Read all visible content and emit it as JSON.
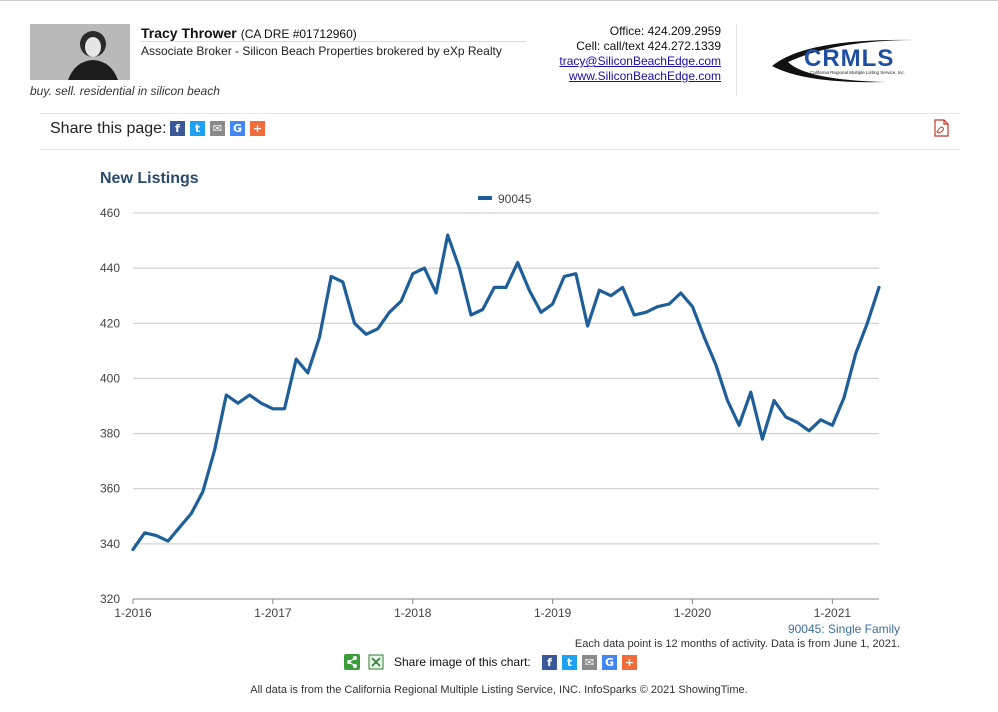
{
  "agent": {
    "name": "Tracy Thrower",
    "dre": "(CA DRE #01712960)",
    "title": "Associate Broker - Silicon Beach Properties brokered by eXp Realty",
    "tagline": "buy. sell. residential in silicon beach"
  },
  "contact": {
    "office": "Office: 424.209.2959",
    "cell": "Cell: call/text 424.272.1339",
    "email": "tracy@SiliconBeachEdge.com",
    "website": "www.SiliconBeachEdge.com"
  },
  "logo": {
    "text": "CRMLS",
    "subtext": "California Regional Multiple Listing Service, Inc."
  },
  "share_page": {
    "label": "Share this page:",
    "buttons": [
      {
        "icon": "facebook-icon",
        "glyph": "f",
        "color": "#3b5998"
      },
      {
        "icon": "twitter-icon",
        "glyph": "t",
        "color": "#1da1f2"
      },
      {
        "icon": "email-icon",
        "glyph": "✉",
        "color": "#8a8a8a"
      },
      {
        "icon": "google-icon",
        "glyph": "G",
        "color": "#4285f4"
      },
      {
        "icon": "plus-icon",
        "glyph": "+",
        "color": "#f26b3a"
      }
    ]
  },
  "chart_data": {
    "type": "line",
    "title": "New Listings",
    "x_ticks": [
      "1-2016",
      "1-2017",
      "1-2018",
      "1-2019",
      "1-2020",
      "1-2021"
    ],
    "x_range": [
      "2016-01",
      "2021-05"
    ],
    "ylim": [
      320,
      460
    ],
    "y_ticks": [
      320,
      340,
      360,
      380,
      400,
      420,
      440,
      460
    ],
    "grid": true,
    "legend_position": "top-center",
    "series": [
      {
        "name": "90045",
        "color": "#1f5f99",
        "x": [
          "2016-01",
          "2016-02",
          "2016-03",
          "2016-04",
          "2016-05",
          "2016-06",
          "2016-07",
          "2016-08",
          "2016-09",
          "2016-10",
          "2016-11",
          "2016-12",
          "2017-01",
          "2017-02",
          "2017-03",
          "2017-04",
          "2017-05",
          "2017-06",
          "2017-07",
          "2017-08",
          "2017-09",
          "2017-10",
          "2017-11",
          "2017-12",
          "2018-01",
          "2018-02",
          "2018-03",
          "2018-04",
          "2018-05",
          "2018-06",
          "2018-07",
          "2018-08",
          "2018-09",
          "2018-10",
          "2018-11",
          "2018-12",
          "2019-01",
          "2019-02",
          "2019-03",
          "2019-04",
          "2019-05",
          "2019-06",
          "2019-07",
          "2019-08",
          "2019-09",
          "2019-10",
          "2019-11",
          "2019-12",
          "2020-01",
          "2020-02",
          "2020-03",
          "2020-04",
          "2020-05",
          "2020-06",
          "2020-07",
          "2020-08",
          "2020-09",
          "2020-10",
          "2020-11",
          "2020-12",
          "2021-01",
          "2021-02",
          "2021-03",
          "2021-04",
          "2021-05"
        ],
        "values": [
          338,
          344,
          343,
          341,
          346,
          351,
          359,
          374,
          394,
          391,
          394,
          391,
          389,
          389,
          407,
          402,
          415,
          437,
          435,
          420,
          416,
          418,
          424,
          428,
          438,
          440,
          431,
          452,
          440,
          423,
          425,
          433,
          433,
          442,
          432,
          424,
          427,
          437,
          438,
          419,
          432,
          430,
          433,
          423,
          424,
          426,
          427,
          431,
          426,
          415,
          405,
          392,
          383,
          395,
          378,
          392,
          386,
          384,
          381,
          385,
          383,
          393,
          409,
          420,
          433
        ]
      }
    ]
  },
  "footnotes": {
    "series_label": "90045: Single Family",
    "data_note": "Each data point is 12 months of activity. Data is from June 1, 2021."
  },
  "share_chart": {
    "label": "Share image of this chart:"
  },
  "bottom_note": "All data is from the California Regional Multiple Listing Service, INC. InfoSparks © 2021 ShowingTime."
}
